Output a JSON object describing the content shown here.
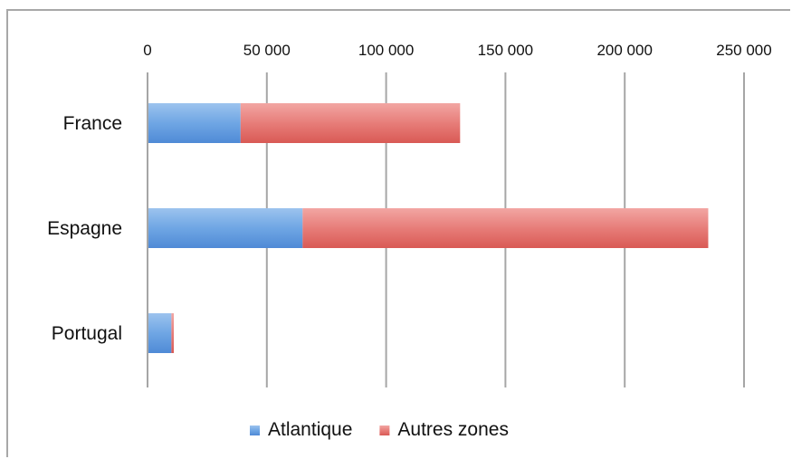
{
  "chart_data": {
    "type": "bar",
    "orientation": "horizontal",
    "stacked": true,
    "categories": [
      "France",
      "Espagne",
      "Portugal"
    ],
    "series": [
      {
        "name": "Atlantique",
        "color": "#5b9bd5",
        "values": [
          39000,
          65000,
          10000
        ]
      },
      {
        "name": "Autres zones",
        "color": "#e06666",
        "values": [
          92000,
          170000,
          1000
        ]
      }
    ],
    "xlim": [
      0,
      250000
    ],
    "x_ticks": [
      {
        "value": 0,
        "label": "0"
      },
      {
        "value": 50000,
        "label": "50 000"
      },
      {
        "value": 100000,
        "label": "100 000"
      },
      {
        "value": 150000,
        "label": "150 000"
      },
      {
        "value": 200000,
        "label": "200 000"
      },
      {
        "value": 250000,
        "label": "250 000"
      }
    ],
    "x_axis_position": "top",
    "grid": true,
    "legend_position": "bottom",
    "title": "",
    "xlabel": "",
    "ylabel": ""
  }
}
